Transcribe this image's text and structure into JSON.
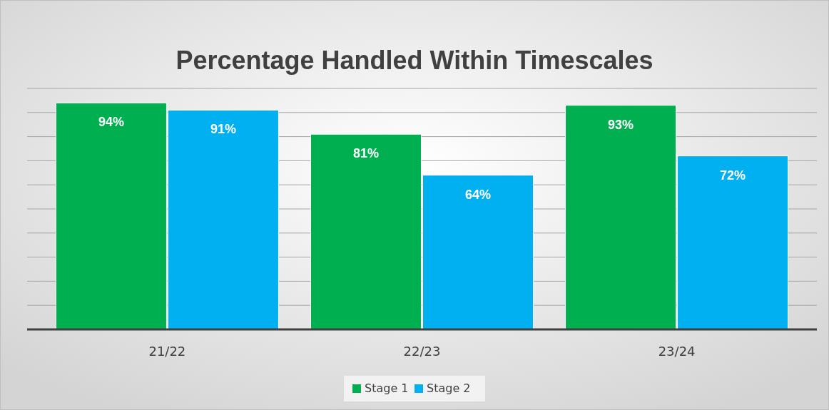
{
  "chart_data": {
    "type": "bar",
    "title": "Percentage Handled Within Timescales",
    "categories": [
      "21/22",
      "22/23",
      "23/24"
    ],
    "series": [
      {
        "name": "Stage 1",
        "color": "#00b050",
        "values": [
          94,
          81,
          93
        ],
        "value_labels": [
          "94%",
          "81%",
          "93%"
        ]
      },
      {
        "name": "Stage 2",
        "color": "#00b0f0",
        "values": [
          91,
          64,
          72
        ],
        "value_labels": [
          "91%",
          "64%",
          "72%"
        ]
      }
    ],
    "ylim": [
      0,
      100
    ],
    "yticks": [
      {
        "value": 0,
        "label": null
      },
      {
        "value": 10,
        "label": null
      },
      {
        "value": 20,
        "label": null
      },
      {
        "value": 30,
        "label": null
      },
      {
        "value": 40,
        "label": null
      },
      {
        "value": 50,
        "label": null
      },
      {
        "value": 60,
        "label": null
      },
      {
        "value": 70,
        "label": null
      },
      {
        "value": 80,
        "label": null
      },
      {
        "value": 90,
        "label": null
      },
      {
        "value": 100,
        "label": null
      }
    ],
    "grid": "y",
    "legend": "bottom",
    "tick_labels": "x"
  }
}
